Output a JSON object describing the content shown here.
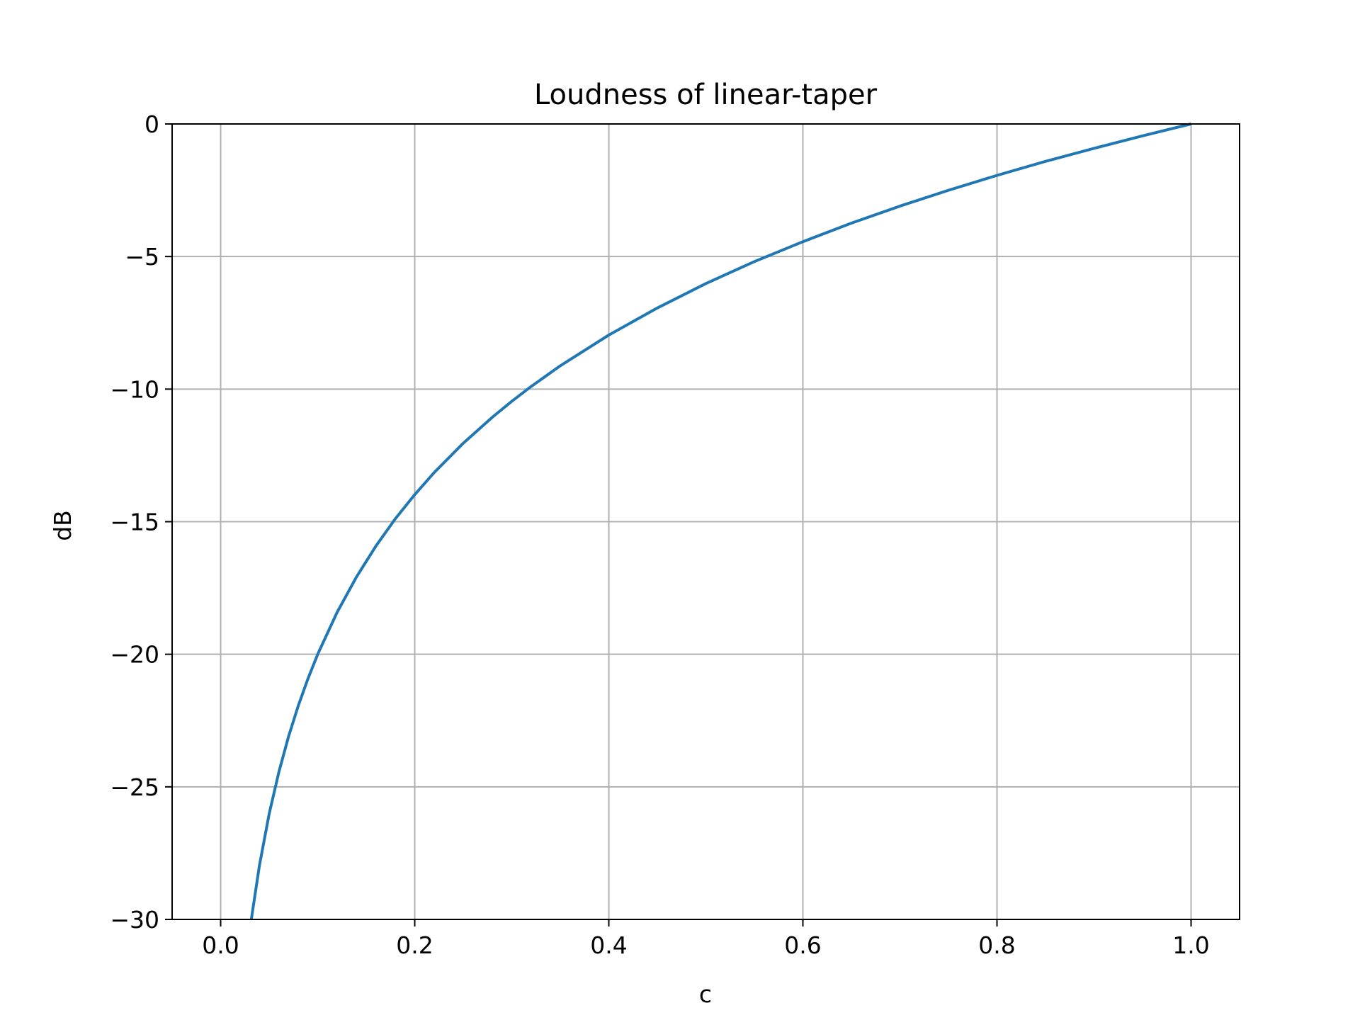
{
  "chart_data": {
    "type": "line",
    "title": "Loudness of linear-taper",
    "xlabel": "c",
    "ylabel": "dB",
    "xlim": [
      -0.05,
      1.05
    ],
    "ylim": [
      -30,
      0
    ],
    "xticks": [
      0.0,
      0.2,
      0.4,
      0.6,
      0.8,
      1.0
    ],
    "xtick_labels": [
      "0.0",
      "0.2",
      "0.4",
      "0.6",
      "0.8",
      "1.0"
    ],
    "yticks": [
      0,
      -5,
      -10,
      -15,
      -20,
      -25,
      -30
    ],
    "ytick_labels": [
      "0",
      "−5",
      "−10",
      "−15",
      "−20",
      "−25",
      "−30"
    ],
    "grid": true,
    "legend": false,
    "series": [
      {
        "color": "#1f77b4",
        "x": [
          0.0316,
          0.04,
          0.05,
          0.06,
          0.07,
          0.08,
          0.09,
          0.1,
          0.12,
          0.14,
          0.16,
          0.18,
          0.2,
          0.22,
          0.25,
          0.28,
          0.3,
          0.32,
          0.35,
          0.4,
          0.45,
          0.5,
          0.55,
          0.6,
          0.65,
          0.7,
          0.75,
          0.8,
          0.85,
          0.9,
          0.95,
          1.0
        ],
        "y": [
          -30.0,
          -27.96,
          -26.02,
          -24.44,
          -23.1,
          -21.94,
          -20.92,
          -20.0,
          -18.42,
          -17.08,
          -15.92,
          -14.89,
          -13.98,
          -13.15,
          -12.04,
          -11.06,
          -10.46,
          -9.9,
          -9.12,
          -7.96,
          -6.94,
          -6.02,
          -5.19,
          -4.44,
          -3.74,
          -3.1,
          -2.5,
          -1.94,
          -1.41,
          -0.92,
          -0.45,
          0.0
        ]
      }
    ]
  }
}
